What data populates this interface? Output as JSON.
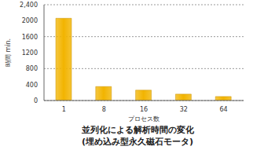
{
  "chart_data": {
    "type": "bar",
    "title": "並列化による解析時間の変化",
    "subtitle": "(埋め込み型永久磁石モータ)",
    "x_label": "プロセス数",
    "y_label": "時間 min.",
    "categories": [
      "1",
      "8",
      "16",
      "32",
      "64"
    ],
    "values": [
      2060,
      350,
      260,
      160,
      100
    ],
    "color": "#f2b400",
    "ylim": [
      0,
      2400
    ],
    "yticks": [
      0,
      400,
      800,
      1200,
      1600,
      2000,
      {
        "value": 2400,
        "label": "2,400"
      }
    ],
    "grid": true
  }
}
